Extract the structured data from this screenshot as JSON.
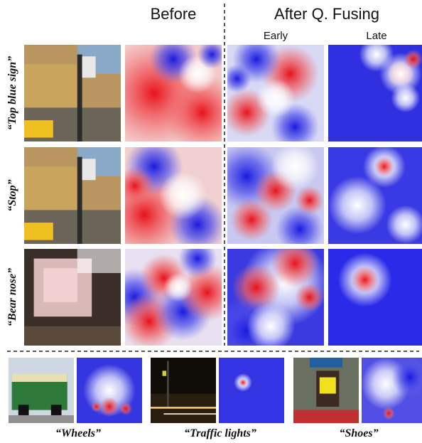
{
  "header": {
    "before": "Before",
    "after": "After Q. Fusing",
    "early": "Early",
    "late": "Late"
  },
  "rows": [
    {
      "query": "“Top blue sign”"
    },
    {
      "query": "“Stop”"
    },
    {
      "query": "“Bear nose”"
    }
  ],
  "examples": [
    {
      "query": "“Wheels”"
    },
    {
      "query": "“Traffic lights”"
    },
    {
      "query": "“Shoes”"
    }
  ]
}
